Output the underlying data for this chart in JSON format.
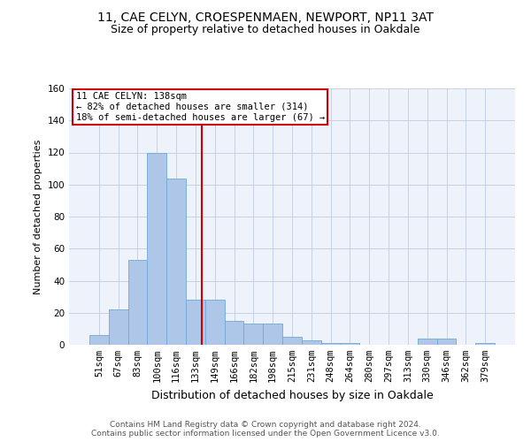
{
  "title1": "11, CAE CELYN, CROESPENMAEN, NEWPORT, NP11 3AT",
  "title2": "Size of property relative to detached houses in Oakdale",
  "xlabel": "Distribution of detached houses by size in Oakdale",
  "ylabel": "Number of detached properties",
  "categories": [
    "51sqm",
    "67sqm",
    "83sqm",
    "100sqm",
    "116sqm",
    "133sqm",
    "149sqm",
    "166sqm",
    "182sqm",
    "198sqm",
    "215sqm",
    "231sqm",
    "248sqm",
    "264sqm",
    "280sqm",
    "297sqm",
    "313sqm",
    "330sqm",
    "346sqm",
    "362sqm",
    "379sqm"
  ],
  "values": [
    6,
    22,
    53,
    120,
    104,
    28,
    28,
    15,
    13,
    13,
    5,
    3,
    1,
    1,
    0,
    0,
    0,
    4,
    4,
    0,
    1
  ],
  "bar_color": "#aec6e8",
  "bar_edge_color": "#6ea8d8",
  "vline_color": "#cc0000",
  "vline_x": 5.31,
  "annotation_box_text": "11 CAE CELYN: 138sqm\n← 82% of detached houses are smaller (314)\n18% of semi-detached houses are larger (67) →",
  "annotation_box_color": "#cc0000",
  "annotation_box_bg": "#ffffff",
  "ylim": [
    0,
    160
  ],
  "yticks": [
    0,
    20,
    40,
    60,
    80,
    100,
    120,
    140,
    160
  ],
  "footer_text": "Contains HM Land Registry data © Crown copyright and database right 2024.\nContains public sector information licensed under the Open Government Licence v3.0.",
  "bg_color": "#eef2fa",
  "title_fontsize": 10,
  "subtitle_fontsize": 9,
  "tick_fontsize": 7.5,
  "ylabel_fontsize": 8,
  "xlabel_fontsize": 9,
  "footer_fontsize": 6.5
}
